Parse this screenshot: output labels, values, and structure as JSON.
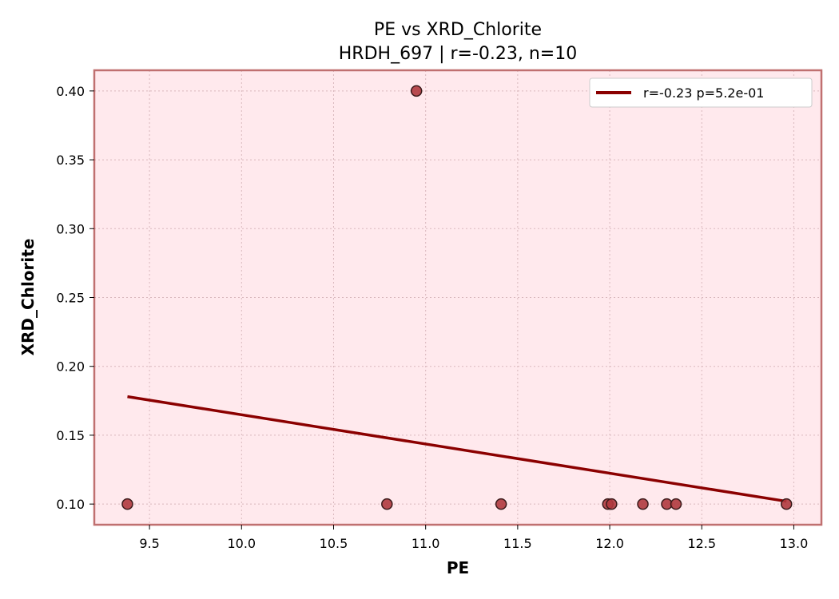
{
  "chart_data": {
    "type": "scatter",
    "title": "PE vs XRD_Chlorite",
    "subtitle": "HRDH_697 | r=-0.23, n=10",
    "xlabel": "PE",
    "ylabel": "XRD_Chlorite",
    "xlim": [
      9.2,
      13.15
    ],
    "ylim": [
      0.085,
      0.415
    ],
    "xticks": [
      9.5,
      10.0,
      10.5,
      11.0,
      11.5,
      12.0,
      12.5,
      13.0
    ],
    "xtick_labels": [
      "9.5",
      "10.0",
      "10.5",
      "11.0",
      "11.5",
      "12.0",
      "12.5",
      "13.0"
    ],
    "yticks": [
      0.1,
      0.15,
      0.2,
      0.25,
      0.3,
      0.35,
      0.4
    ],
    "ytick_labels": [
      "0.10",
      "0.15",
      "0.20",
      "0.25",
      "0.30",
      "0.35",
      "0.40"
    ],
    "grid": true,
    "legend_position": "top-right",
    "points": [
      {
        "x": 9.38,
        "y": 0.1
      },
      {
        "x": 10.79,
        "y": 0.1
      },
      {
        "x": 10.95,
        "y": 0.4
      },
      {
        "x": 11.41,
        "y": 0.1
      },
      {
        "x": 11.99,
        "y": 0.1
      },
      {
        "x": 12.01,
        "y": 0.1
      },
      {
        "x": 12.18,
        "y": 0.1
      },
      {
        "x": 12.31,
        "y": 0.1
      },
      {
        "x": 12.36,
        "y": 0.1
      },
      {
        "x": 12.96,
        "y": 0.1
      }
    ],
    "fit_line": {
      "label": "r=-0.23  p=5.2e-01",
      "x": [
        9.38,
        12.96
      ],
      "y": [
        0.178,
        0.102
      ]
    },
    "colors": {
      "plot_background": "#ffe9ed",
      "frame": "#c07070",
      "point_fill": "#b03a3e",
      "point_edge": "#3a1a1a",
      "fit_line": "#8b0000",
      "grid": "#d9b8bd"
    }
  }
}
